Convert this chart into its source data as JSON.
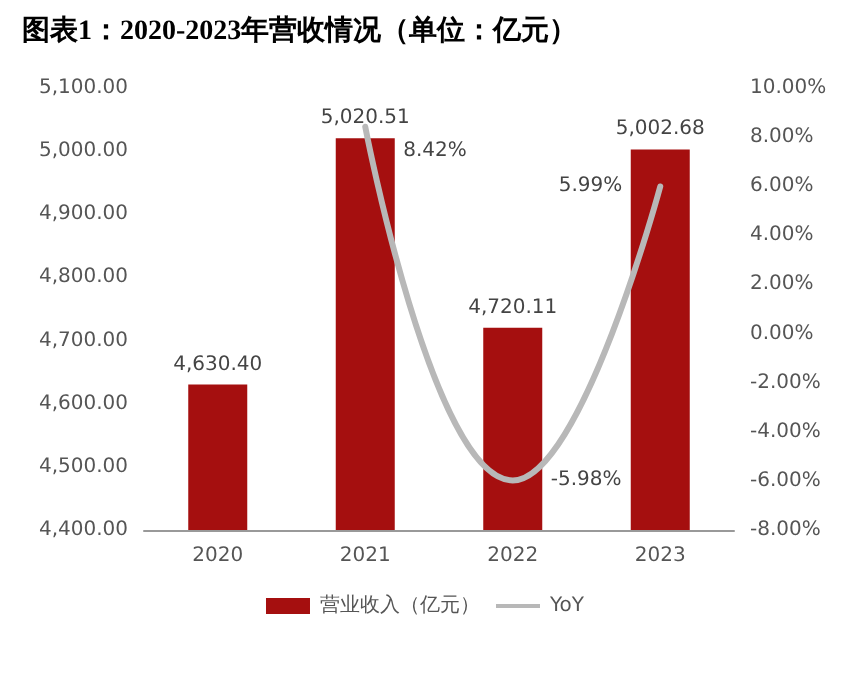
{
  "chart_data": {
    "type": "bar",
    "title": "图表1：2020-2023年营收情况（单位：亿元）",
    "categories": [
      "2020",
      "2021",
      "2022",
      "2023"
    ],
    "series": [
      {
        "name": "营业收入（亿元）",
        "color": "#a50f0f",
        "values": [
          4630.4,
          5020.51,
          4720.11,
          5002.68
        ],
        "value_labels": [
          "4,630.40",
          "5,020.51",
          "4,720.11",
          "5,002.68"
        ]
      },
      {
        "name": "YoY",
        "type": "line",
        "axis": "y2",
        "color": "#b8b8b8",
        "marker": "none",
        "values": [
          null,
          8.42,
          -5.98,
          5.99
        ],
        "value_labels": [
          null,
          "8.42%",
          "-5.98%",
          "5.99%"
        ]
      }
    ],
    "ylim": [
      4400,
      5100
    ],
    "yticks": [
      {
        "value": 4400,
        "label": "4,400.00"
      },
      {
        "value": 4500,
        "label": "4,500.00"
      },
      {
        "value": 4600,
        "label": "4,600.00"
      },
      {
        "value": 4700,
        "label": "4,700.00"
      },
      {
        "value": 4800,
        "label": "4,800.00"
      },
      {
        "value": 4900,
        "label": "4,900.00"
      },
      {
        "value": 5000,
        "label": "5,000.00"
      },
      {
        "value": 5100,
        "label": "5,100.00"
      }
    ],
    "y2lim": [
      -8,
      10
    ],
    "y2ticks": [
      {
        "value": -8,
        "label": "-8.00%"
      },
      {
        "value": -6,
        "label": "-6.00%"
      },
      {
        "value": -4,
        "label": "-4.00%"
      },
      {
        "value": -2,
        "label": "-2.00%"
      },
      {
        "value": 0,
        "label": "0.00%"
      },
      {
        "value": 2,
        "label": "2.00%"
      },
      {
        "value": 4,
        "label": "4.00%"
      },
      {
        "value": 6,
        "label": "6.00%"
      },
      {
        "value": 8,
        "label": "8.00%"
      },
      {
        "value": 10,
        "label": "10.00%"
      }
    ],
    "grid": false,
    "legend": "bottom"
  }
}
